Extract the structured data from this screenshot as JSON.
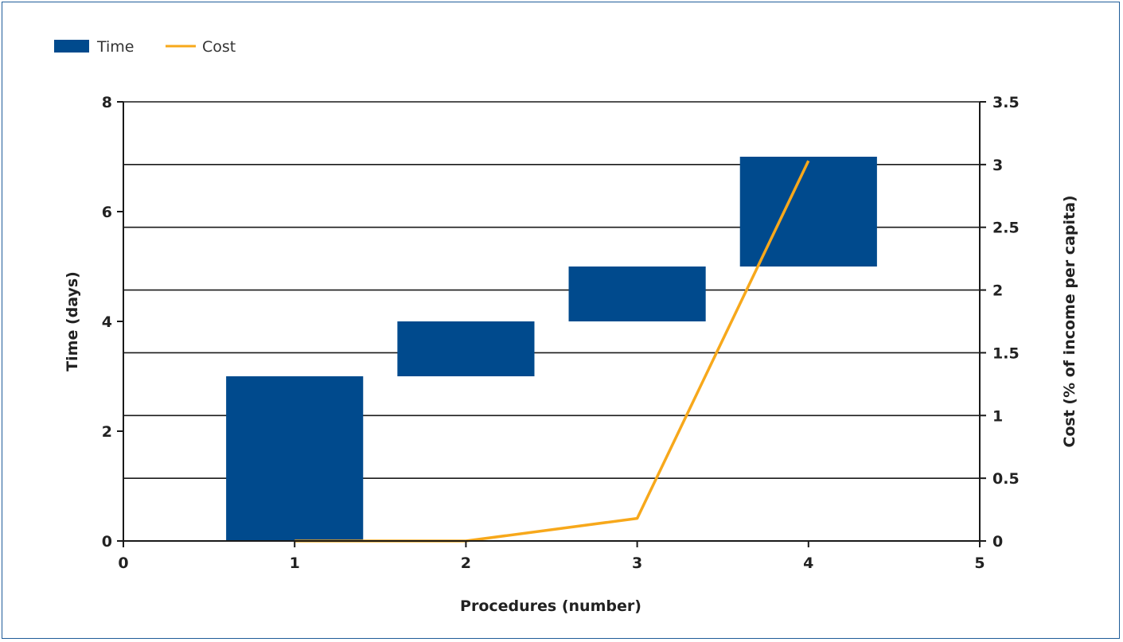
{
  "chart_data": {
    "type": "bar",
    "subtype": "floating-bar-with-line",
    "legend": {
      "position": "top-left",
      "items": [
        {
          "label": "Time",
          "kind": "bar",
          "color": "#004a8d"
        },
        {
          "label": "Cost",
          "kind": "line",
          "color": "#f7a81b"
        }
      ]
    },
    "xlabel": "Procedures (number)",
    "ylabel_left": "Time (days)",
    "ylabel_right": "Cost (% of income per capita)",
    "xlim": [
      0,
      5
    ],
    "ylim_left": [
      0,
      8
    ],
    "ylim_right": [
      0,
      3.5
    ],
    "x_ticks": [
      "0",
      "1",
      "2",
      "3",
      "4",
      "5"
    ],
    "y_left_ticks": [
      "0",
      "2",
      "4",
      "6",
      "8"
    ],
    "y_right_ticks": [
      "0",
      "0.5",
      "1",
      "1.5",
      "2",
      "2.5",
      "3",
      "3.5"
    ],
    "grid": true,
    "series": [
      {
        "name": "Time",
        "axis": "left",
        "color": "#004a8d",
        "bars": [
          {
            "x": 1,
            "start": 0,
            "end": 3
          },
          {
            "x": 2,
            "start": 3,
            "end": 4
          },
          {
            "x": 3,
            "start": 4,
            "end": 5
          },
          {
            "x": 4,
            "start": 5,
            "end": 7
          }
        ]
      },
      {
        "name": "Cost",
        "axis": "right",
        "color": "#f7a81b",
        "points": [
          {
            "x": 1,
            "y": 0
          },
          {
            "x": 2,
            "y": 0
          },
          {
            "x": 3,
            "y": 0.18
          },
          {
            "x": 4,
            "y": 3.03
          }
        ]
      }
    ]
  }
}
